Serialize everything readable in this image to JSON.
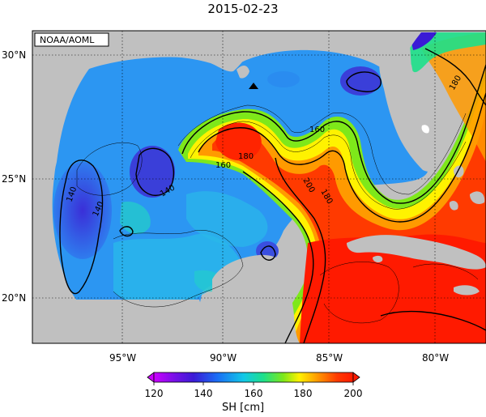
{
  "title": "2015-02-23",
  "credit": "NOAA/AOML",
  "lat_labels": [
    "30°N",
    "25°N",
    "20°N"
  ],
  "lon_labels": [
    "95°W",
    "90°W",
    "85°W",
    "80°W"
  ],
  "contour_labels": [
    "140",
    "140",
    "140",
    "160",
    "180",
    "160",
    "200",
    "180",
    "180"
  ],
  "colorbar": {
    "label": "SH [cm]",
    "ticks": [
      "120",
      "140",
      "160",
      "180",
      "200"
    ],
    "colors": [
      "#cc00ff",
      "#3a1bd6",
      "#1a6ff5",
      "#12c8e8",
      "#1de08a",
      "#7ee81a",
      "#fff200",
      "#ff9a00",
      "#ff3a00",
      "#ff1a00"
    ]
  },
  "colors": {
    "land": "#c0c0c0",
    "loop_current": "#ff2a00",
    "gulf_interior": "#2a8cf0",
    "cyclonic_eddy": "#3340e0"
  },
  "marker": "triangle-marker"
}
